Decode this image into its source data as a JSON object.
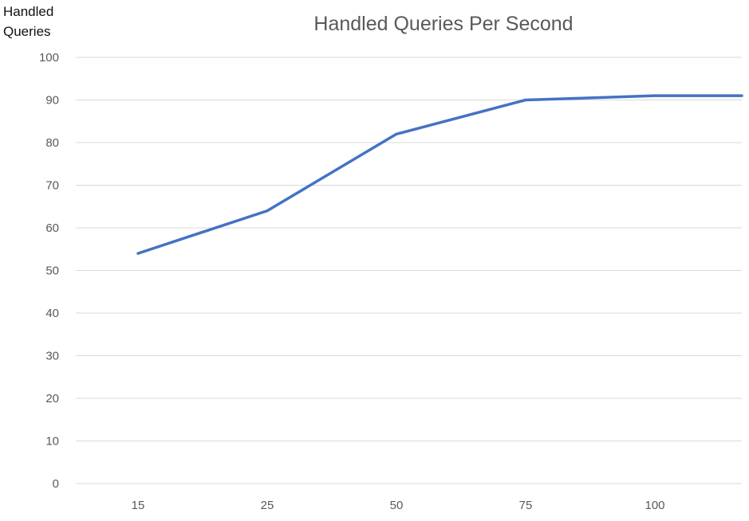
{
  "chart_data": {
    "type": "line",
    "title": "Handled Queries Per Second",
    "ylabel": "Handled\nQueries",
    "xlabel": "",
    "categories": [
      "15",
      "25",
      "50",
      "75",
      "100",
      ""
    ],
    "series": [
      {
        "values": [
          54,
          64,
          82,
          90,
          91,
          91
        ]
      }
    ],
    "ylim": [
      0,
      100
    ],
    "yticks": [
      "0",
      "10",
      "20",
      "30",
      "40",
      "50",
      "60",
      "70",
      "80",
      "90",
      "100"
    ],
    "grid": true,
    "legend": "none",
    "colors": {
      "line": "#4472C4",
      "grid": "#d9d9d9",
      "tick_text": "#595959"
    }
  }
}
